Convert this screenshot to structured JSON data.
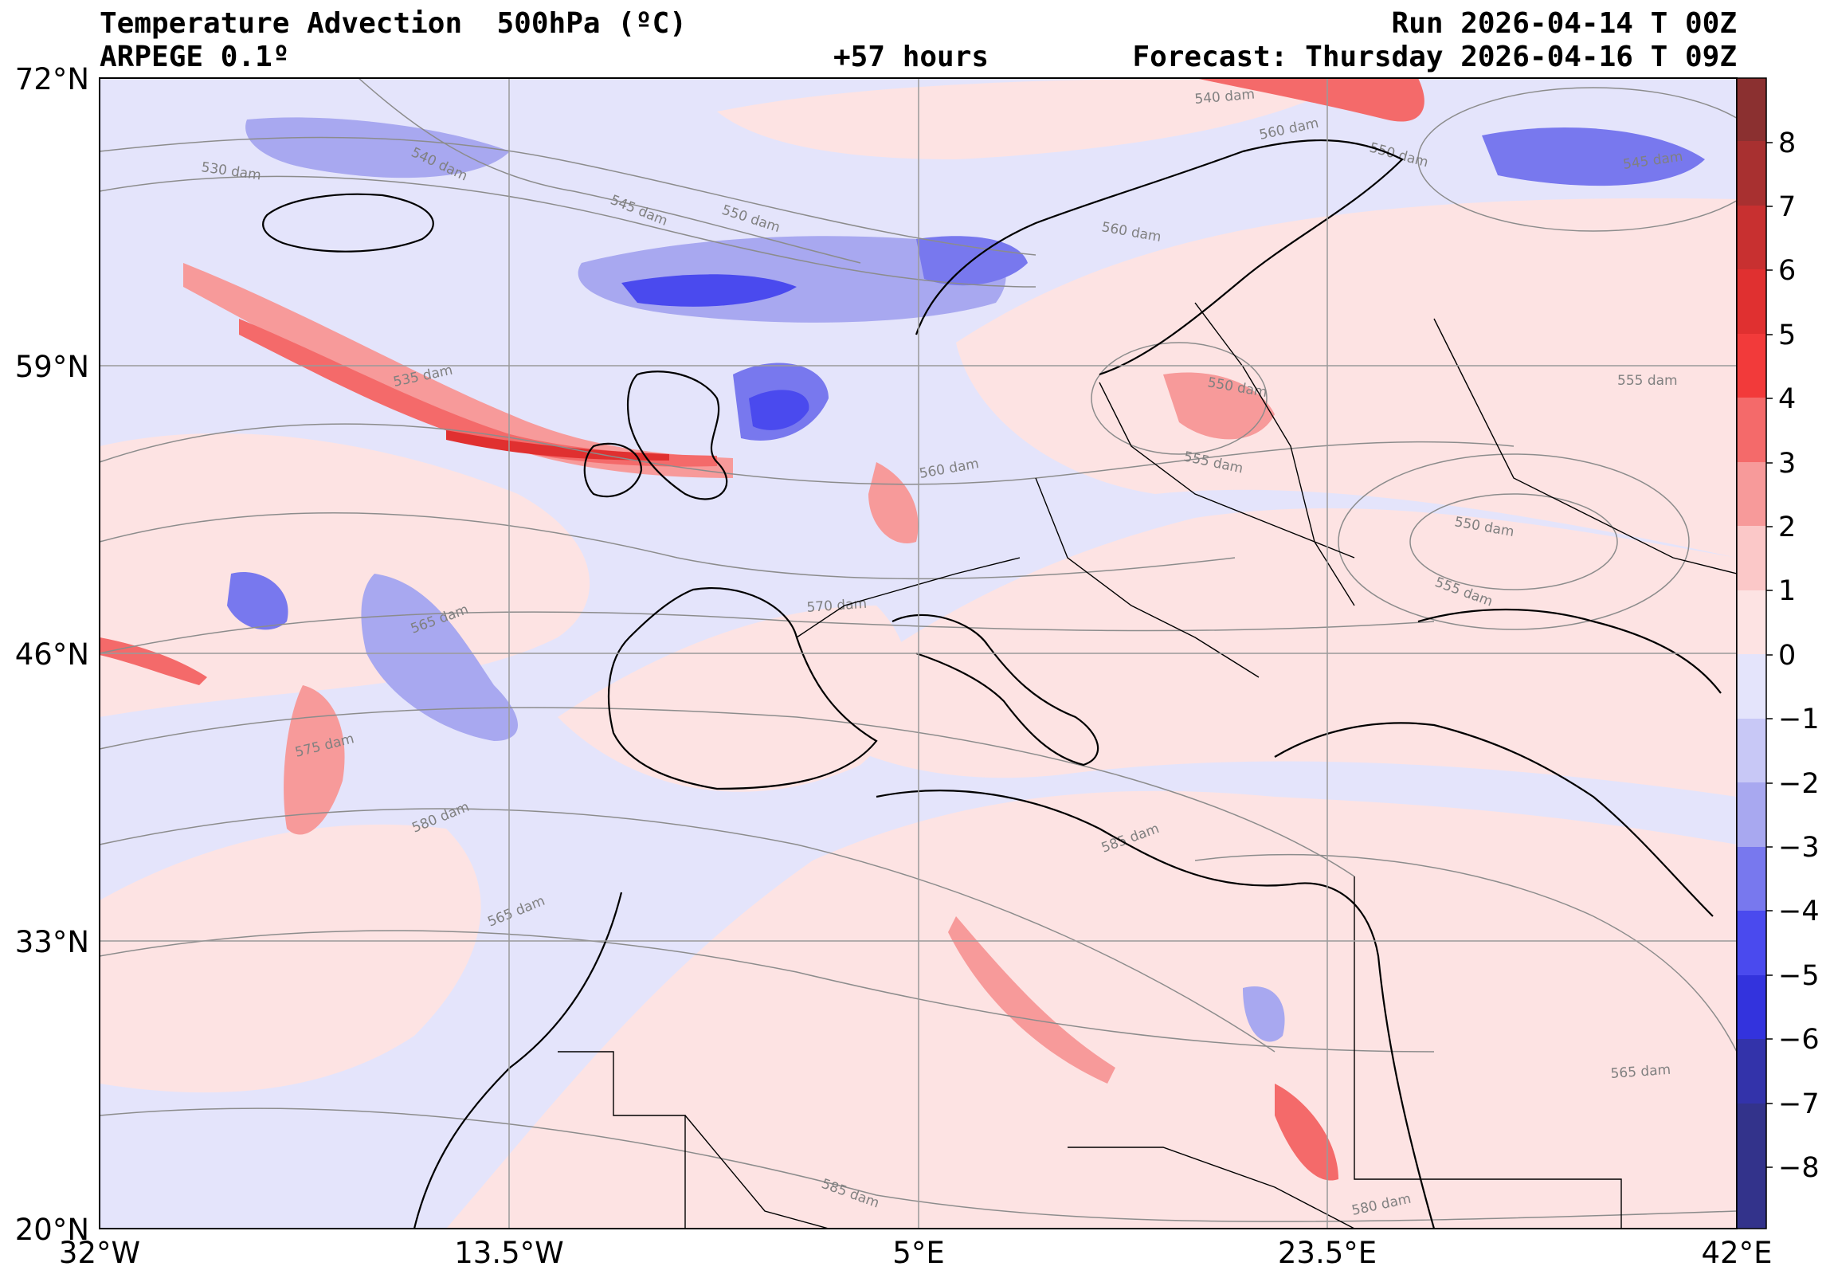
{
  "header": {
    "title": "Temperature Advection  500hPa (ºC)",
    "model": "ARPEGE 0.1º",
    "lead": "+57 hours",
    "run": "Run 2026-04-14 T 00Z",
    "forecast": "Forecast: Thursday 2026-04-16 T 09Z"
  },
  "axes": {
    "lat_labels": [
      "72°N",
      "59°N",
      "46°N",
      "33°N",
      "20°N"
    ],
    "lon_labels": [
      "32°W",
      "13.5°W",
      "5°E",
      "23.5°E",
      "42°E"
    ]
  },
  "colorbar": {
    "labels": [
      "8",
      "7",
      "6",
      "5",
      "4",
      "3",
      "2",
      "1",
      "0",
      "−1",
      "−2",
      "−3",
      "−4",
      "−5",
      "−6",
      "−7",
      "−8"
    ],
    "colors": [
      "#8b3030",
      "#a83030",
      "#c83030",
      "#e03030",
      "#f23a3a",
      "#f46a6a",
      "#f79a9a",
      "#fbc8c8",
      "#fde3e3",
      "#e4e4fb",
      "#c8c8f6",
      "#a8a8f0",
      "#7878ee",
      "#4a4aee",
      "#3333dd",
      "#3333aa",
      "#33338b"
    ]
  },
  "contours": [
    "530 dam",
    "540 dam",
    "545 dam",
    "550 dam",
    "560 dam",
    "535 dam",
    "555 dam",
    "550 dam",
    "560 dam",
    "570 dam",
    "565 dam",
    "575 dam",
    "580 dam",
    "565 dam",
    "585 dam",
    "585 dam",
    "580 dam",
    "565 dam",
    "550 dam",
    "545 dam",
    "555 dam",
    "550 dam",
    "560 dam",
    "555 dam",
    "540 dam"
  ],
  "colors": {
    "background_pos": "#fde3e3",
    "background_neg": "#e4e4fb",
    "coast": "#000000",
    "grid": "#9a9a9a"
  }
}
